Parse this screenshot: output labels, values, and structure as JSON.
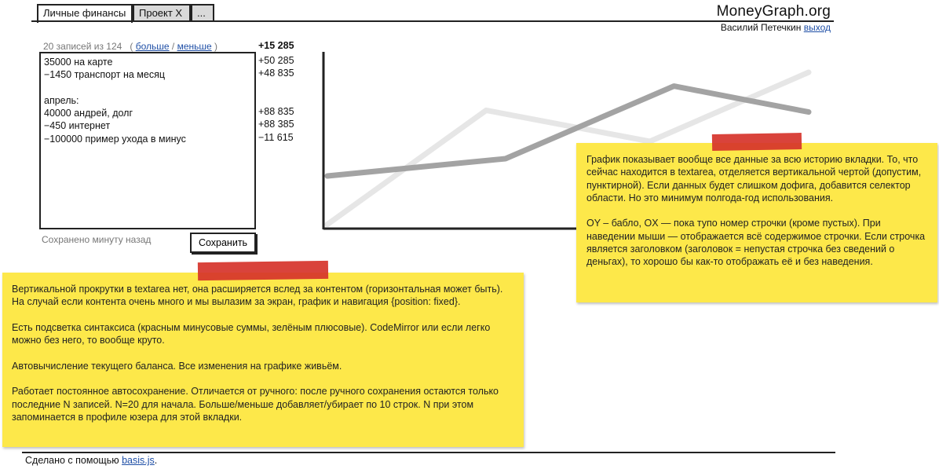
{
  "tabs": [
    {
      "label": "Личные финансы",
      "active": true
    },
    {
      "label": "Проект X",
      "active": false
    },
    {
      "label": "...",
      "active": false
    }
  ],
  "header": {
    "brand": "MoneyGraph.org",
    "user_name": "Василий Петечкин",
    "logout_label": "выход"
  },
  "editor": {
    "records_text": "20 записей из 124",
    "paren_open": "(",
    "more_label": "больше",
    "slash": "/",
    "less_label": "меньше",
    "paren_close": ")",
    "total": "+15 285",
    "lines": [
      "35000 на карте",
      "−1450 транспорт на месяц",
      "",
      "апрель:",
      "40000 андрей, долг",
      "−450 интернет",
      "−100000 пример ухода в минус"
    ],
    "balances": [
      "+50 285",
      "+48 835",
      "",
      "",
      "+88 835",
      "+88 385",
      "−11 615"
    ],
    "saved_status": "Сохранено минуту назад",
    "save_label": "Сохранить"
  },
  "chart_data": {
    "type": "line",
    "title": "",
    "xlabel": "",
    "ylabel": "",
    "grid": false,
    "ylim": [
      0,
      100
    ],
    "series": [
      {
        "values": [
          30,
          40,
          82,
          67
        ],
        "color": "#a3a3a3",
        "x": [
          0,
          0.37,
          0.72,
          1.0
        ]
      },
      {
        "values": [
          2,
          68,
          50,
          90
        ],
        "color": "#e6e6e6",
        "x": [
          0,
          0.33,
          0.67,
          1.0
        ]
      }
    ]
  },
  "notes": {
    "right": [
      "График показывает вообще все данные за всю историю вкладки. То, что сейчас находится в textarea, отделяется вертикальной чертой (допустим, пунктирной). Если данных будет слишком дофига, добавится селектор области. Но это минимум полгода-год использования.",
      "OY – бабло, OX — пока тупо номер строчки (кроме пустых). При наведении мыши — отображается всё содержимое строчки. Если строчка является заголовком (заголовок = непустая строчка без сведений о деньгах), то хорошо бы как-то отображать её и без наведения."
    ],
    "left": [
      "Вертикальной прокрутки в textarea нет, она расширяется вслед за контентом (горизонтальная может быть). На случай если контента очень много и мы вылазим за экран, график и навигация {position: fixed}.",
      "Есть подсветка синтаксиса (красным минусовые суммы, зелёным плюсовые). CodeMirror или если легко можно без него, то вообще круто.",
      "Автовычисление текущего баланса. Все изменения на графике живьём.",
      "Работает постоянное автосохранение. Отличается от ручного: после ручного сохранения остаются только последние N записей. N=20 для начала. Больше/меньше добавляет/убирает по 10 строк. N при этом запоминается в профиле юзера для этой вкладки."
    ]
  },
  "footer": {
    "made_with": "Сделано с помощью",
    "link_label": "basis.js",
    "dot": "."
  }
}
